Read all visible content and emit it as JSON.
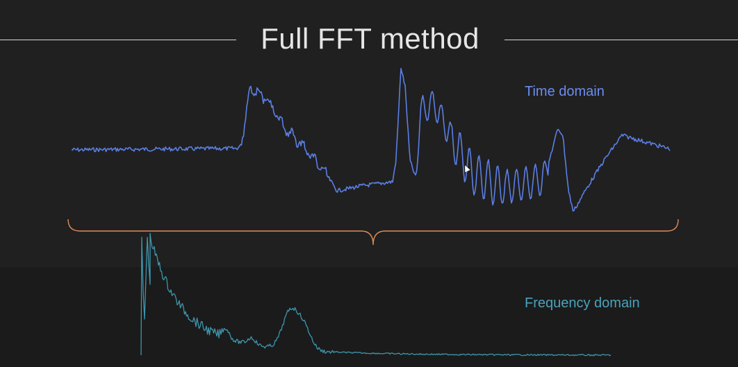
{
  "title": "Full FFT method",
  "labels": {
    "time_domain": "Time domain",
    "frequency_domain": "Frequency domain"
  },
  "colors": {
    "time_signal": "#5b7fe6",
    "frequency_signal": "#3f96ad",
    "brace": "#e08a5a",
    "title_rule": "#d8d8d8"
  }
}
